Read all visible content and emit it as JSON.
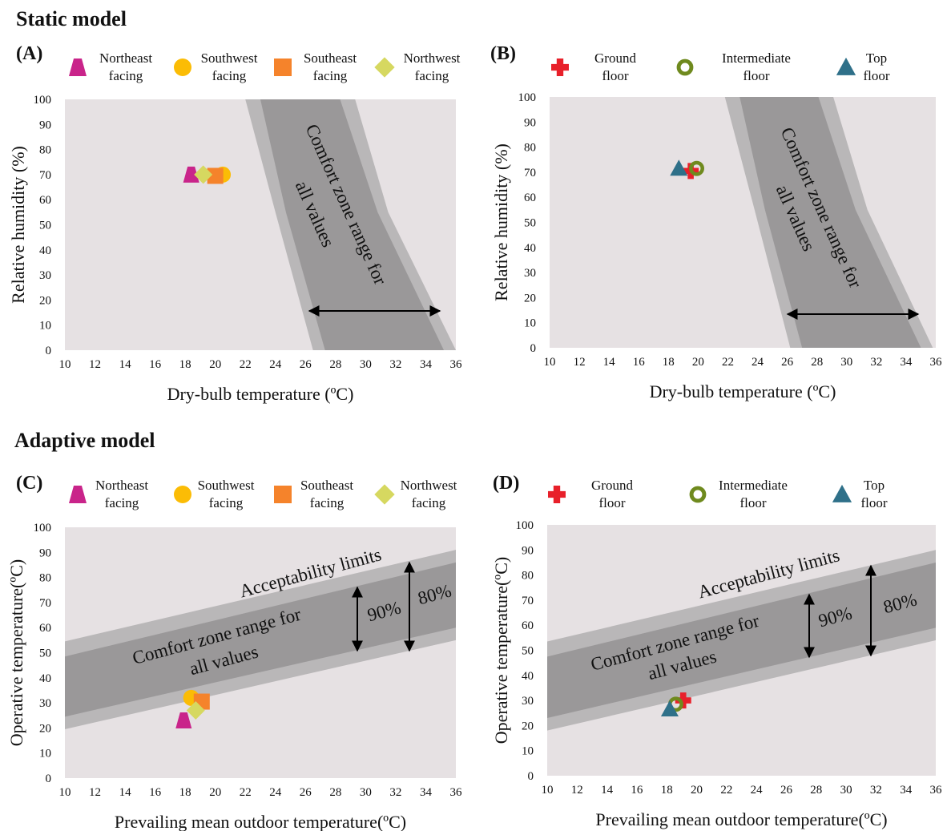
{
  "sections": [
    "Static model",
    "Adaptive model"
  ],
  "chart_data": [
    {
      "type": "scatter",
      "panel_label": "(A)",
      "xlabel": "Dry-bulb temperature (ºC)",
      "ylabel": "Relative humidity (%)",
      "xlim": [
        10,
        36
      ],
      "xticks": [
        10,
        12,
        14,
        16,
        18,
        20,
        22,
        24,
        26,
        28,
        30,
        32,
        34,
        36
      ],
      "ylim": [
        0,
        100
      ],
      "yticks": [
        0,
        10,
        20,
        30,
        40,
        50,
        60,
        70,
        80,
        90,
        100
      ],
      "annotations": {
        "comfort_zone": [
          "Comfort zone range for",
          "all values"
        ]
      },
      "zones": [
        {
          "color": "#b9b7b8",
          "x": [
            22,
            29.3,
            31.5,
            36,
            26.5,
            24
          ],
          "y": [
            100,
            100,
            55,
            0,
            0,
            55
          ]
        },
        {
          "color": "#9a9899",
          "x": [
            23,
            28.3,
            30.8,
            35.2,
            27.3,
            24.7
          ],
          "y": [
            100,
            100,
            55,
            0,
            0,
            55
          ]
        }
      ],
      "series": [
        {
          "name": "Northeast facing",
          "color": "#c9248a",
          "marker": "trapezoid",
          "x": [
            18.4
          ],
          "values": [
            70
          ]
        },
        {
          "name": "Southwest facing",
          "color": "#fbbc05",
          "marker": "circle",
          "x": [
            20.5
          ],
          "values": [
            70
          ]
        },
        {
          "name": "Southeast facing",
          "color": "#f5832b",
          "marker": "square",
          "x": [
            20.0
          ],
          "values": [
            69.5
          ]
        },
        {
          "name": "Northwest facing",
          "color": "#d6d860",
          "marker": "diamond",
          "x": [
            19.2
          ],
          "values": [
            70
          ]
        }
      ]
    },
    {
      "type": "scatter",
      "panel_label": "(B)",
      "xlabel": "Dry-bulb temperature (ºC)",
      "ylabel": "Relative humidity (%)",
      "xlim": [
        10,
        36
      ],
      "xticks": [
        10,
        12,
        14,
        16,
        18,
        20,
        22,
        24,
        26,
        28,
        30,
        32,
        34,
        36
      ],
      "ylim": [
        0,
        100
      ],
      "yticks": [
        0,
        10,
        20,
        30,
        40,
        50,
        60,
        70,
        80,
        90,
        100
      ],
      "annotations": {
        "comfort_zone": [
          "Comfort zone range for",
          "all values"
        ]
      },
      "zones": [
        {
          "color": "#b9b7b8",
          "x": [
            21.8,
            29.1,
            31.4,
            35.8,
            26.2,
            23.8
          ],
          "y": [
            100,
            100,
            55,
            0,
            0,
            55
          ]
        },
        {
          "color": "#9a9899",
          "x": [
            22.8,
            28.1,
            30.6,
            35.0,
            27.0,
            24.5
          ],
          "y": [
            100,
            100,
            55,
            0,
            0,
            55
          ]
        }
      ],
      "series": [
        {
          "name": "Ground floor",
          "color": "#e8202a",
          "marker": "cross",
          "x": [
            19.5
          ],
          "values": [
            70.5
          ]
        },
        {
          "name": "Intermediate floor",
          "color": "#6f8a1e",
          "marker": "ring",
          "x": [
            19.9
          ],
          "values": [
            71.5
          ]
        },
        {
          "name": "Top floor",
          "color": "#2f7089",
          "marker": "triangle",
          "x": [
            18.7
          ],
          "values": [
            71.5
          ]
        }
      ]
    },
    {
      "type": "scatter",
      "panel_label": "(C)",
      "xlabel": "Prevailing mean outdoor temperature(ºC)",
      "ylabel": "Operative temperature(ºC)",
      "xlim": [
        10,
        36
      ],
      "xticks": [
        10,
        12,
        14,
        16,
        18,
        20,
        22,
        24,
        26,
        28,
        30,
        32,
        34,
        36
      ],
      "ylim": [
        0,
        100
      ],
      "yticks": [
        0,
        10,
        20,
        30,
        40,
        50,
        60,
        70,
        80,
        90,
        100
      ],
      "annotations": {
        "comfort_zone": [
          "Comfort zone range for",
          "all values"
        ],
        "acceptability": "Acceptability limits",
        "limits": [
          "90%",
          "80%"
        ]
      },
      "zones": [
        {
          "color": "#b9b7b8",
          "x": [
            10,
            36,
            36,
            10
          ],
          "y": [
            19.5,
            55,
            91,
            54.5
          ]
        },
        {
          "color": "#9a9899",
          "x": [
            10,
            36,
            36,
            10
          ],
          "y": [
            24.5,
            60,
            86,
            48.5
          ]
        }
      ],
      "series": [
        {
          "name": "Northeast facing",
          "color": "#c9248a",
          "marker": "trapezoid",
          "x": [
            17.9
          ],
          "values": [
            23
          ]
        },
        {
          "name": "Southwest facing",
          "color": "#fbbc05",
          "marker": "circle",
          "x": [
            18.4
          ],
          "values": [
            32
          ]
        },
        {
          "name": "Southeast facing",
          "color": "#f5832b",
          "marker": "square",
          "x": [
            19.1
          ],
          "values": [
            30.5
          ]
        },
        {
          "name": "Northwest facing",
          "color": "#d6d860",
          "marker": "diamond",
          "x": [
            18.7
          ],
          "values": [
            27
          ]
        }
      ]
    },
    {
      "type": "scatter",
      "panel_label": "(D)",
      "xlabel": "Prevailing mean outdoor temperature(ºC)",
      "ylabel": "Operative temperature(ºC)",
      "xlim": [
        10,
        36
      ],
      "xticks": [
        10,
        12,
        14,
        16,
        18,
        20,
        22,
        24,
        26,
        28,
        30,
        32,
        34,
        36
      ],
      "ylim": [
        0,
        100
      ],
      "yticks": [
        0,
        10,
        20,
        30,
        40,
        50,
        60,
        70,
        80,
        90,
        100
      ],
      "annotations": {
        "comfort_zone": [
          "Comfort zone range for",
          "all values"
        ],
        "acceptability": "Acceptability limits",
        "limits": [
          "90%",
          "80%"
        ]
      },
      "zones": [
        {
          "color": "#b9b7b8",
          "x": [
            10,
            36,
            36,
            10
          ],
          "y": [
            18,
            54,
            90,
            53.5
          ]
        },
        {
          "color": "#9a9899",
          "x": [
            10,
            36,
            36,
            10
          ],
          "y": [
            23,
            59,
            85,
            47.5
          ]
        }
      ],
      "series": [
        {
          "name": "Ground floor",
          "color": "#e8202a",
          "marker": "cross",
          "x": [
            19.1
          ],
          "values": [
            30
          ]
        },
        {
          "name": "Intermediate floor",
          "color": "#6f8a1e",
          "marker": "ring",
          "x": [
            18.6
          ],
          "values": [
            28.5
          ]
        },
        {
          "name": "Top floor",
          "color": "#2f7089",
          "marker": "triangle",
          "x": [
            18.2
          ],
          "values": [
            26.5
          ]
        }
      ]
    }
  ]
}
